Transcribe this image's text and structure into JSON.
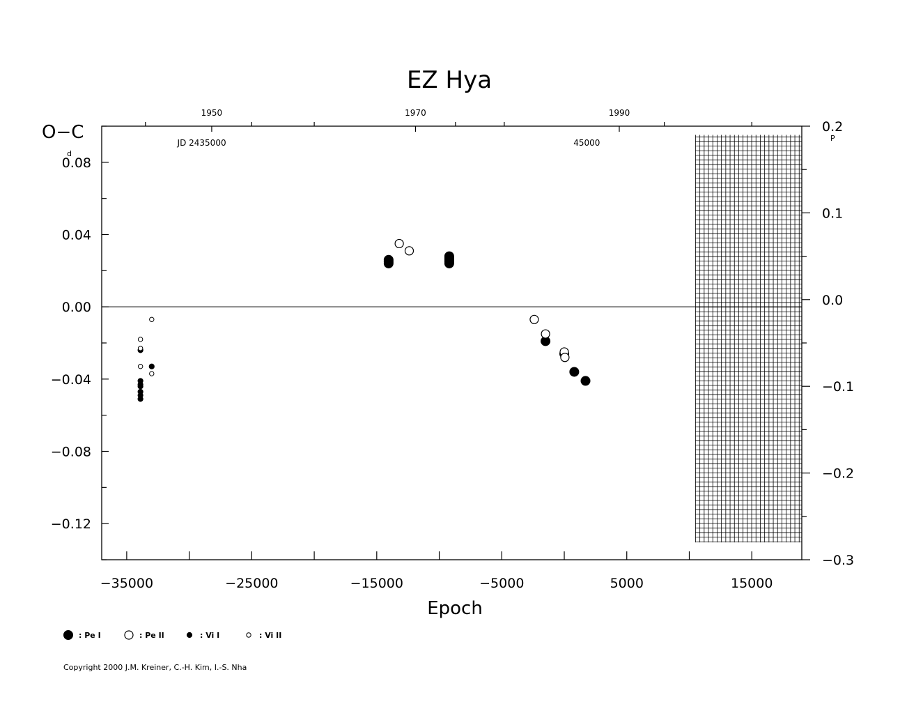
{
  "chart_data": {
    "type": "scatter",
    "title": "EZ  Hya",
    "xlabel": "Epoch",
    "ylabel": "O−C",
    "ylabel_unit": "d",
    "y2_unit": "P",
    "xlim": [
      -37000,
      19000
    ],
    "ylim": [
      -0.14,
      0.1
    ],
    "y2lim": [
      -0.3,
      0.2
    ],
    "x_ticks": [
      {
        "value": -35000,
        "label": "−35000"
      },
      {
        "value": -25000,
        "label": "−25000"
      },
      {
        "value": -15000,
        "label": "−15000"
      },
      {
        "value": -5000,
        "label": "−5000"
      },
      {
        "value": 5000,
        "label": "5000"
      },
      {
        "value": 15000,
        "label": "15000"
      }
    ],
    "y_ticks": [
      {
        "value": 0.08,
        "label": "0.08"
      },
      {
        "value": 0.04,
        "label": "0.04"
      },
      {
        "value": 0.0,
        "label": "0.00"
      },
      {
        "value": -0.04,
        "label": "−0.04"
      },
      {
        "value": -0.08,
        "label": "−0.08"
      },
      {
        "value": -0.12,
        "label": "−0.12"
      }
    ],
    "y2_ticks": [
      {
        "value": 0.2,
        "label": "0.2"
      },
      {
        "value": 0.1,
        "label": "0.1"
      },
      {
        "value": 0.0,
        "label": "0.0"
      },
      {
        "value": -0.1,
        "label": "−0.1"
      },
      {
        "value": -0.2,
        "label": "−0.2"
      },
      {
        "value": -0.3,
        "label": "−0.3"
      }
    ],
    "top_year_ticks": [
      {
        "epoch": -28200,
        "label": "1950"
      },
      {
        "epoch": -11900,
        "label": "1970"
      },
      {
        "epoch": 4400,
        "label": "1990"
      }
    ],
    "top_jd_labels": [
      {
        "epoch": -29000,
        "label": "JD  2435000"
      },
      {
        "epoch": 1800,
        "label": "45000"
      }
    ],
    "grid": false,
    "hatched_region": {
      "x_from": 10500,
      "x_to": 19000,
      "y2_from": -0.28,
      "y2_to": 0.19
    },
    "series": [
      {
        "name": "Pe I",
        "marker": "large-filled",
        "points": [
          [
            -14050,
            0.024
          ],
          [
            -14050,
            0.025
          ],
          [
            -14050,
            0.026
          ],
          [
            -9200,
            0.024
          ],
          [
            -9200,
            0.025
          ],
          [
            -9200,
            0.026
          ],
          [
            -9200,
            0.027
          ],
          [
            -9200,
            0.028
          ],
          [
            -1500,
            -0.019
          ],
          [
            0,
            -0.026
          ],
          [
            800,
            -0.036
          ],
          [
            1700,
            -0.041
          ]
        ]
      },
      {
        "name": "Pe II",
        "marker": "large-open",
        "points": [
          [
            -13200,
            0.035
          ],
          [
            -12400,
            0.031
          ],
          [
            -2400,
            -0.007
          ],
          [
            -1500,
            -0.015
          ],
          [
            0,
            -0.025
          ],
          [
            50,
            -0.028
          ]
        ]
      },
      {
        "name": "Vi I",
        "marker": "small-filled",
        "points": [
          [
            -33900,
            -0.024
          ],
          [
            -33900,
            -0.041
          ],
          [
            -33900,
            -0.043
          ],
          [
            -33900,
            -0.044
          ],
          [
            -33900,
            -0.047
          ],
          [
            -33900,
            -0.049
          ],
          [
            -33900,
            -0.051
          ],
          [
            -33000,
            -0.033
          ]
        ]
      },
      {
        "name": "Vi II",
        "marker": "small-open",
        "points": [
          [
            -33000,
            -0.007
          ],
          [
            -33900,
            -0.018
          ],
          [
            -33900,
            -0.023
          ],
          [
            -33900,
            -0.033
          ],
          [
            -33000,
            -0.037
          ]
        ]
      }
    ]
  },
  "legend": [
    {
      "marker": "large-filled",
      "label": ": Pe I"
    },
    {
      "marker": "large-open",
      "label": ": Pe II"
    },
    {
      "marker": "small-filled",
      "label": ": Vi I"
    },
    {
      "marker": "small-open",
      "label": ": Vi II"
    }
  ],
  "copyright": "Copyright 2000 J.M. Kreiner, C.-H. Kim, I.-S. Nha"
}
